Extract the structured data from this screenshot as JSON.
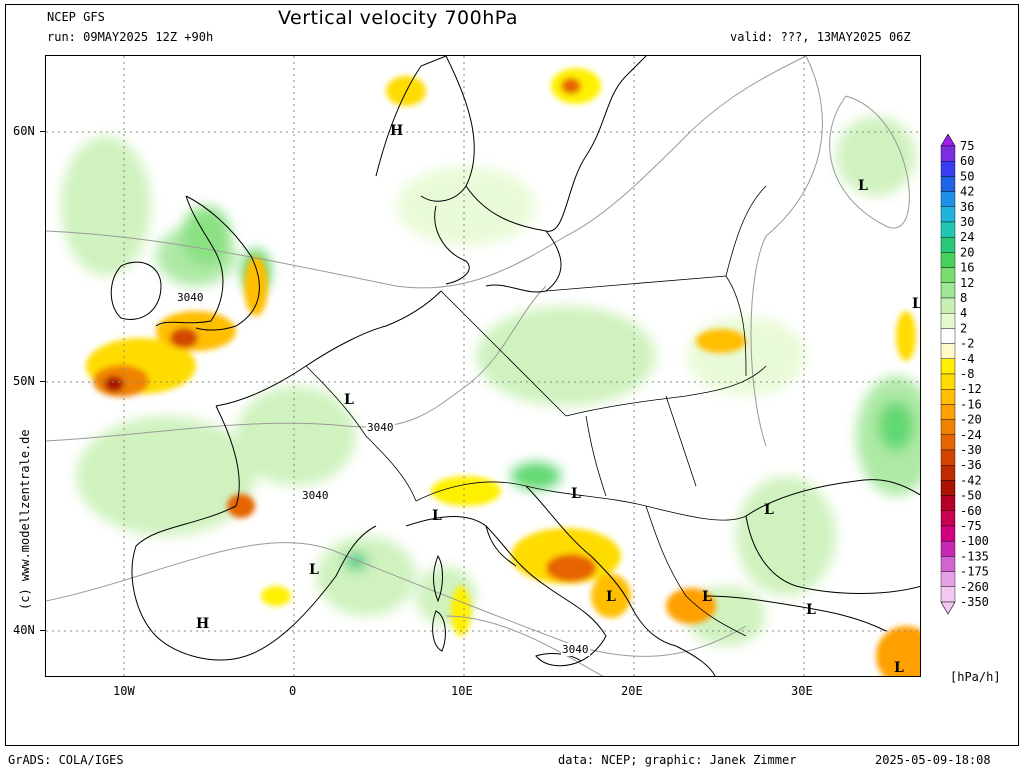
{
  "header": {
    "title": "Vertical velocity 700hPa",
    "model": "NCEP GFS",
    "run": "run: 09MAY2025 12Z +90h",
    "valid": "valid: ???, 13MAY2025 06Z"
  },
  "axes": {
    "lat_labels": [
      "60N",
      "50N",
      "40N"
    ],
    "lon_labels": [
      "10W",
      "0",
      "10E",
      "20E",
      "30E"
    ]
  },
  "legend": {
    "levels": [
      "75",
      "60",
      "50",
      "42",
      "36",
      "30",
      "24",
      "20",
      "16",
      "12",
      "8",
      "4",
      "2",
      "-2",
      "-4",
      "-8",
      "-12",
      "-16",
      "-20",
      "-24",
      "-30",
      "-36",
      "-42",
      "-50",
      "-60",
      "-75",
      "-100",
      "-135",
      "-175",
      "-260",
      "-350"
    ],
    "colors": [
      "#a020f0",
      "#7a2ee0",
      "#3a3cf0",
      "#1e64e6",
      "#1e90e8",
      "#20b4dc",
      "#20c8b4",
      "#28c878",
      "#46d25a",
      "#78dc6e",
      "#a0e696",
      "#c8f0b4",
      "#e6fad2",
      "#ffffff",
      "#fffac8",
      "#fff000",
      "#ffdc00",
      "#ffbe00",
      "#ffa000",
      "#f08200",
      "#e66400",
      "#d24600",
      "#be2d00",
      "#aa1400",
      "#b40028",
      "#c80050",
      "#d2007d",
      "#c828b4",
      "#d264d2",
      "#e6a0e6",
      "#f0c8f0"
    ],
    "unit": "[hPa/h]"
  },
  "map_labels": {
    "contour_3040": "3040",
    "H": "H",
    "L": "L"
  },
  "credits": {
    "side": "(c) www.modellzentrale.de",
    "left": "GrADS: COLA/IGES",
    "middle": "data: NCEP; graphic: Janek Zimmer",
    "right": "2025-05-09-18:08"
  }
}
